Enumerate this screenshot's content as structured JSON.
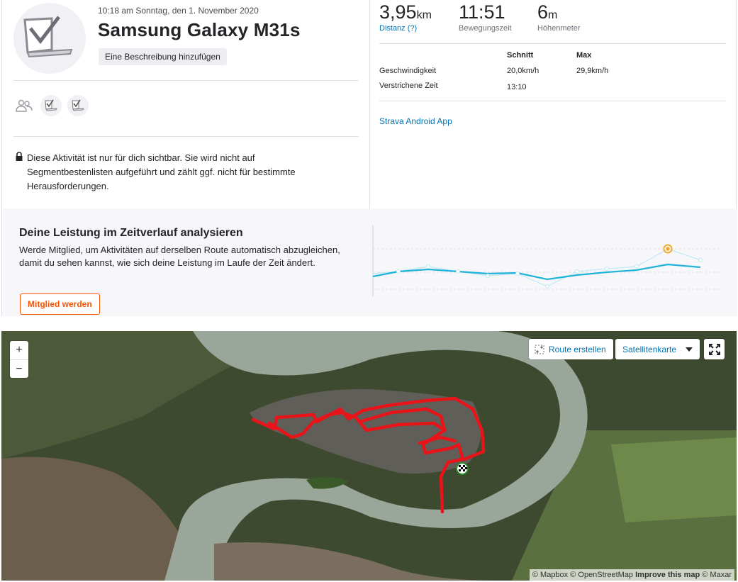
{
  "activity": {
    "datetime": "10:18 am Sonntag, den 1. November 2020",
    "title": "Samsung Galaxy M31s",
    "add_description_label": "Eine Beschreibung hinzufügen",
    "private_notice": "Diese Aktivität ist nur für dich sichtbar. Sie wird nicht auf Segmentbestenlisten aufgeführt und zählt ggf. nicht für bestimmte Herausforderungen."
  },
  "stats": {
    "distance": {
      "value": "3,95",
      "unit": "km",
      "label": "Distanz (?)"
    },
    "moving_time": {
      "value": "11:51",
      "label": "Bewegungszeit"
    },
    "elevation": {
      "value": "6",
      "unit": "m",
      "label": "Höhenmeter"
    }
  },
  "details_table": {
    "col_avg": "Schnitt",
    "col_max": "Max",
    "rows": [
      {
        "label": "Geschwindigkeit",
        "avg": "20,0km/h",
        "max": "29,9km/h"
      },
      {
        "label": "Verstrichene Zeit",
        "avg": "13:10",
        "max": ""
      }
    ]
  },
  "device_link": "Strava Android App",
  "performance": {
    "title": "Deine Leistung im Zeitverlauf analysieren",
    "text": "Werde Mitglied, um Aktivitäten auf derselben Route automatisch abzugleichen, damit du sehen kannst, wie sich deine Leistung im Laufe der Zeit ändert.",
    "button_label": "Mitglied werden"
  },
  "map": {
    "zoom_in": "+",
    "zoom_out": "−",
    "route_button": "Route erstellen",
    "map_type": "Satellitenkarte",
    "attribution_mapbox": "© Mapbox",
    "attribution_osm": "© OpenStreetMap",
    "attribution_improve": "Improve this map",
    "attribution_maxar": "© Maxar"
  },
  "colors": {
    "accent": "#fc5200",
    "link": "#0073b5",
    "route": "#e8141a",
    "trend": "#21b3d8"
  },
  "icons": [
    "activity-device-icon",
    "group-icon",
    "lock-icon",
    "route-create-icon",
    "dropdown-caret-icon",
    "fullscreen-icon",
    "finish-flag-icon"
  ]
}
